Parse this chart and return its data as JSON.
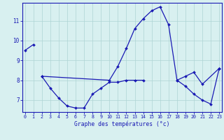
{
  "title": "",
  "xlabel": "Graphe des températures (°c)",
  "background_color": "#d8f0f0",
  "grid_color": "#aed4d4",
  "line_color": "#1a1ab4",
  "hours": [
    0,
    1,
    2,
    3,
    4,
    5,
    6,
    7,
    8,
    9,
    10,
    11,
    12,
    13,
    14,
    15,
    16,
    17,
    18,
    19,
    20,
    21,
    22,
    23
  ],
  "curves": [
    [
      9.5,
      9.8,
      null,
      null,
      null,
      null,
      null,
      null,
      null,
      null,
      null,
      null,
      null,
      null,
      null,
      null,
      null,
      null,
      null,
      null,
      null,
      null,
      null,
      null
    ],
    [
      null,
      null,
      8.2,
      7.6,
      7.1,
      6.7,
      6.6,
      6.6,
      7.3,
      7.6,
      7.9,
      7.9,
      8.0,
      8.0,
      8.0,
      null,
      null,
      null,
      null,
      null,
      null,
      null,
      null,
      null
    ],
    [
      null,
      null,
      8.2,
      null,
      null,
      null,
      null,
      null,
      null,
      null,
      8.0,
      8.7,
      9.6,
      10.6,
      11.1,
      11.5,
      11.7,
      10.8,
      8.0,
      8.2,
      8.4,
      7.8,
      null,
      8.6
    ],
    [
      null,
      null,
      null,
      null,
      null,
      null,
      null,
      null,
      null,
      null,
      null,
      null,
      null,
      null,
      null,
      null,
      null,
      null,
      8.0,
      7.7,
      7.3,
      7.0,
      6.8,
      8.6
    ]
  ],
  "ylim": [
    6.4,
    11.9
  ],
  "yticks": [
    7,
    8,
    9,
    10,
    11
  ],
  "xlim": [
    -0.3,
    23.3
  ],
  "xticks": [
    0,
    1,
    2,
    3,
    4,
    5,
    6,
    7,
    8,
    9,
    10,
    11,
    12,
    13,
    14,
    15,
    16,
    17,
    18,
    19,
    20,
    21,
    22,
    23
  ]
}
